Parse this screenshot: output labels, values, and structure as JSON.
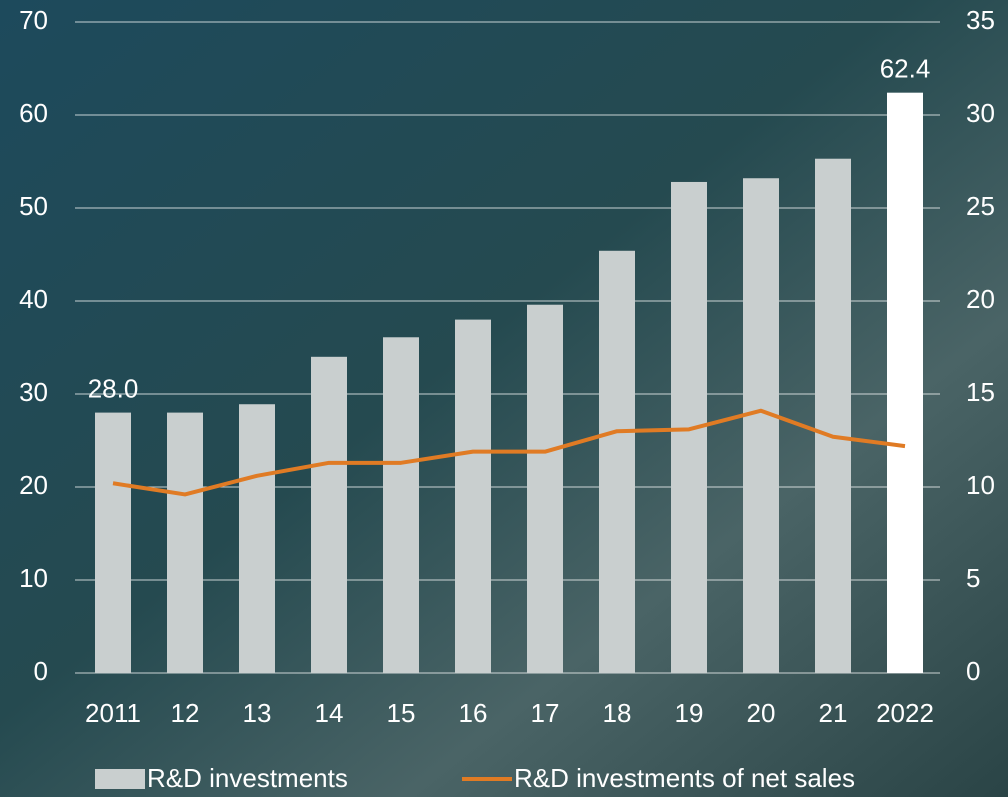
{
  "chart_data": {
    "type": "bar-line",
    "categories": [
      "2011",
      "12",
      "13",
      "14",
      "15",
      "16",
      "17",
      "18",
      "19",
      "20",
      "21",
      "2022"
    ],
    "series": [
      {
        "name": "R&D investments",
        "type": "bar",
        "color": "#c9cfcf",
        "colors": [
          "#c9cfcf",
          "#c9cfcf",
          "#c9cfcf",
          "#c9cfcf",
          "#c9cfcf",
          "#c9cfcf",
          "#c9cfcf",
          "#c9cfcf",
          "#c9cfcf",
          "#c9cfcf",
          "#c9cfcf",
          "#ffffff"
        ],
        "values": [
          28.0,
          28.0,
          28.9,
          34.0,
          36.1,
          38.0,
          39.6,
          45.4,
          52.8,
          53.2,
          55.3,
          62.4
        ],
        "value_labels": [
          "28.0",
          null,
          null,
          null,
          null,
          null,
          null,
          null,
          null,
          null,
          null,
          "62.4"
        ]
      },
      {
        "name": "R&D investments of net sales",
        "type": "line",
        "axis": "y2",
        "color": "#e07b24",
        "values": [
          10.2,
          9.6,
          10.6,
          11.3,
          11.3,
          11.9,
          11.9,
          13.0,
          13.1,
          14.1,
          12.7,
          12.2
        ]
      }
    ],
    "ylim": [
      0,
      70
    ],
    "yticks": [
      0,
      10,
      20,
      30,
      40,
      50,
      60,
      70
    ],
    "y2lim": [
      0,
      35
    ],
    "y2ticks": [
      0,
      5,
      10,
      15,
      20,
      25,
      30,
      35
    ],
    "grid": true
  }
}
